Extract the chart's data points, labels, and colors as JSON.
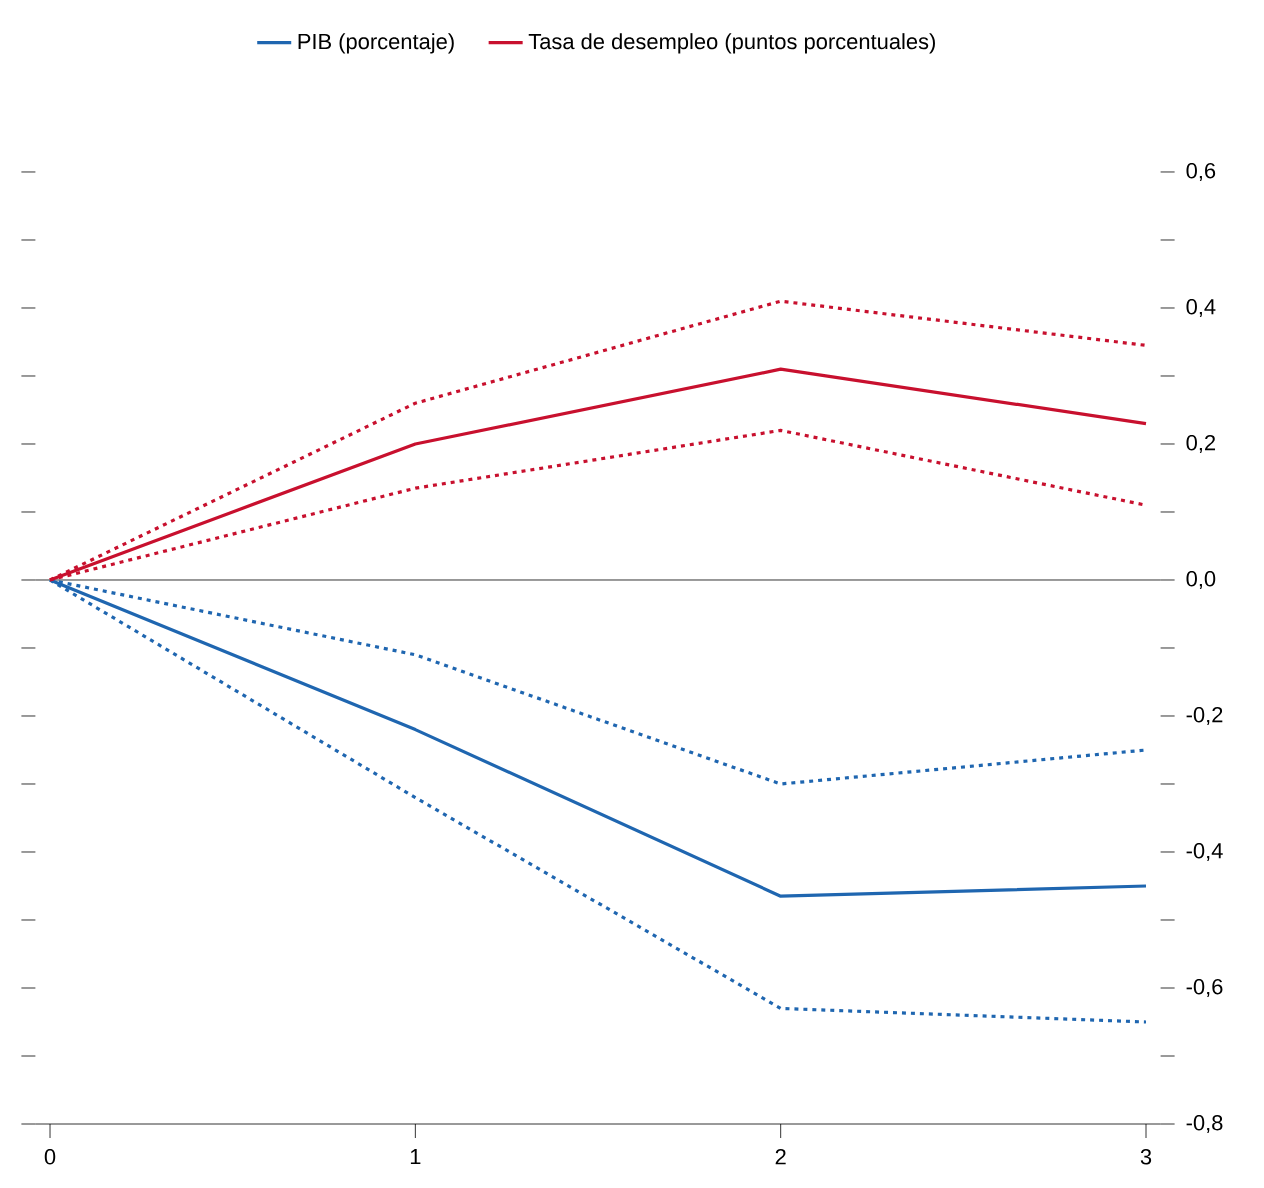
{
  "chart_data": {
    "type": "line",
    "x": [
      0,
      1,
      2,
      3
    ],
    "xlim": [
      -0.04,
      3.04
    ],
    "xticks": [
      0,
      1,
      2,
      3
    ],
    "ylim": [
      -0.8,
      0.6
    ],
    "yticks": [
      {
        "value": -0.8,
        "label": "-0,8"
      },
      {
        "value": -0.7,
        "label": null
      },
      {
        "value": -0.6,
        "label": "-0,6"
      },
      {
        "value": -0.5,
        "label": null
      },
      {
        "value": -0.4,
        "label": "-0,4"
      },
      {
        "value": -0.3,
        "label": null
      },
      {
        "value": -0.2,
        "label": "-0,2"
      },
      {
        "value": -0.1,
        "label": null
      },
      {
        "value": 0,
        "label": "0,0"
      },
      {
        "value": 0.1,
        "label": null
      },
      {
        "value": 0.2,
        "label": "0,2"
      },
      {
        "value": 0.3,
        "label": null
      },
      {
        "value": 0.4,
        "label": "0,4"
      },
      {
        "value": 0.5,
        "label": null
      },
      {
        "value": 0.6,
        "label": "0,6"
      }
    ],
    "series": [
      {
        "name": "PIB (porcentaje)",
        "color": "#1f66b0",
        "values": [
          0,
          -0.22,
          -0.465,
          -0.45
        ],
        "line_style": "solid"
      },
      {
        "name": "Tasa de desempleo (puntos porcentuales)",
        "color": "#c8102e",
        "values": [
          0,
          0.2,
          0.31,
          0.23
        ],
        "line_style": "solid"
      },
      {
        "color": "#1f66b0",
        "values": [
          0,
          -0.11,
          -0.3,
          -0.25
        ],
        "line_style": "dotted"
      },
      {
        "color": "#1f66b0",
        "values": [
          0,
          -0.32,
          -0.63,
          -0.65
        ],
        "line_style": "dotted"
      },
      {
        "color": "#c8102e",
        "values": [
          0,
          0.26,
          0.41,
          0.345
        ],
        "line_style": "dotted"
      },
      {
        "color": "#c8102e",
        "values": [
          0,
          0.135,
          0.22,
          0.11
        ],
        "line_style": "dotted"
      }
    ],
    "ref_lines": [
      {
        "axis": "y",
        "value": 0,
        "color": "#000000"
      }
    ],
    "legend": "top",
    "grid": false,
    "marker": "none"
  }
}
